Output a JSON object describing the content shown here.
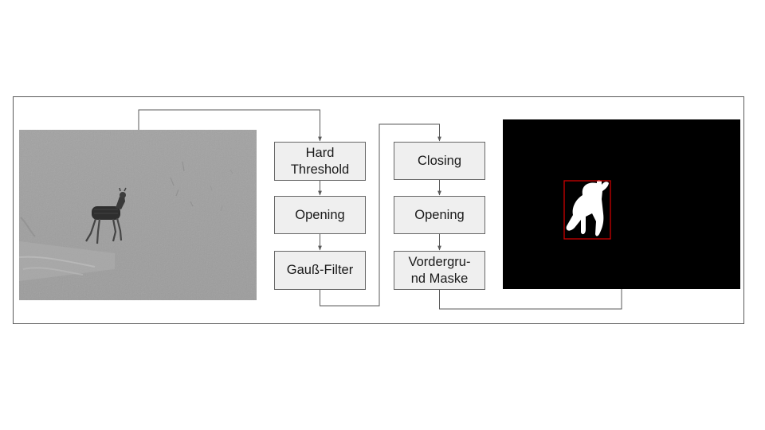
{
  "diagram": {
    "pipeline_left": [
      {
        "label_lines": [
          "Hard",
          "Threshold"
        ]
      },
      {
        "label_lines": [
          "Opening"
        ]
      },
      {
        "label_lines": [
          "Gauß-Filter"
        ]
      }
    ],
    "pipeline_right": [
      {
        "label_lines": [
          "Closing"
        ]
      },
      {
        "label_lines": [
          "Opening"
        ]
      },
      {
        "label_lines": [
          "Vordergru-",
          "nd Maske"
        ]
      }
    ],
    "images": {
      "input": "grayscale-difference-image-with-deer",
      "output": "binary-foreground-mask-with-bounding-box"
    },
    "colors": {
      "box_fill": "#efefef",
      "box_border": "#666666",
      "connector": "#595959",
      "bounding_box": "#cc0000",
      "mask_background": "#000000",
      "mask_foreground": "#ffffff"
    }
  }
}
